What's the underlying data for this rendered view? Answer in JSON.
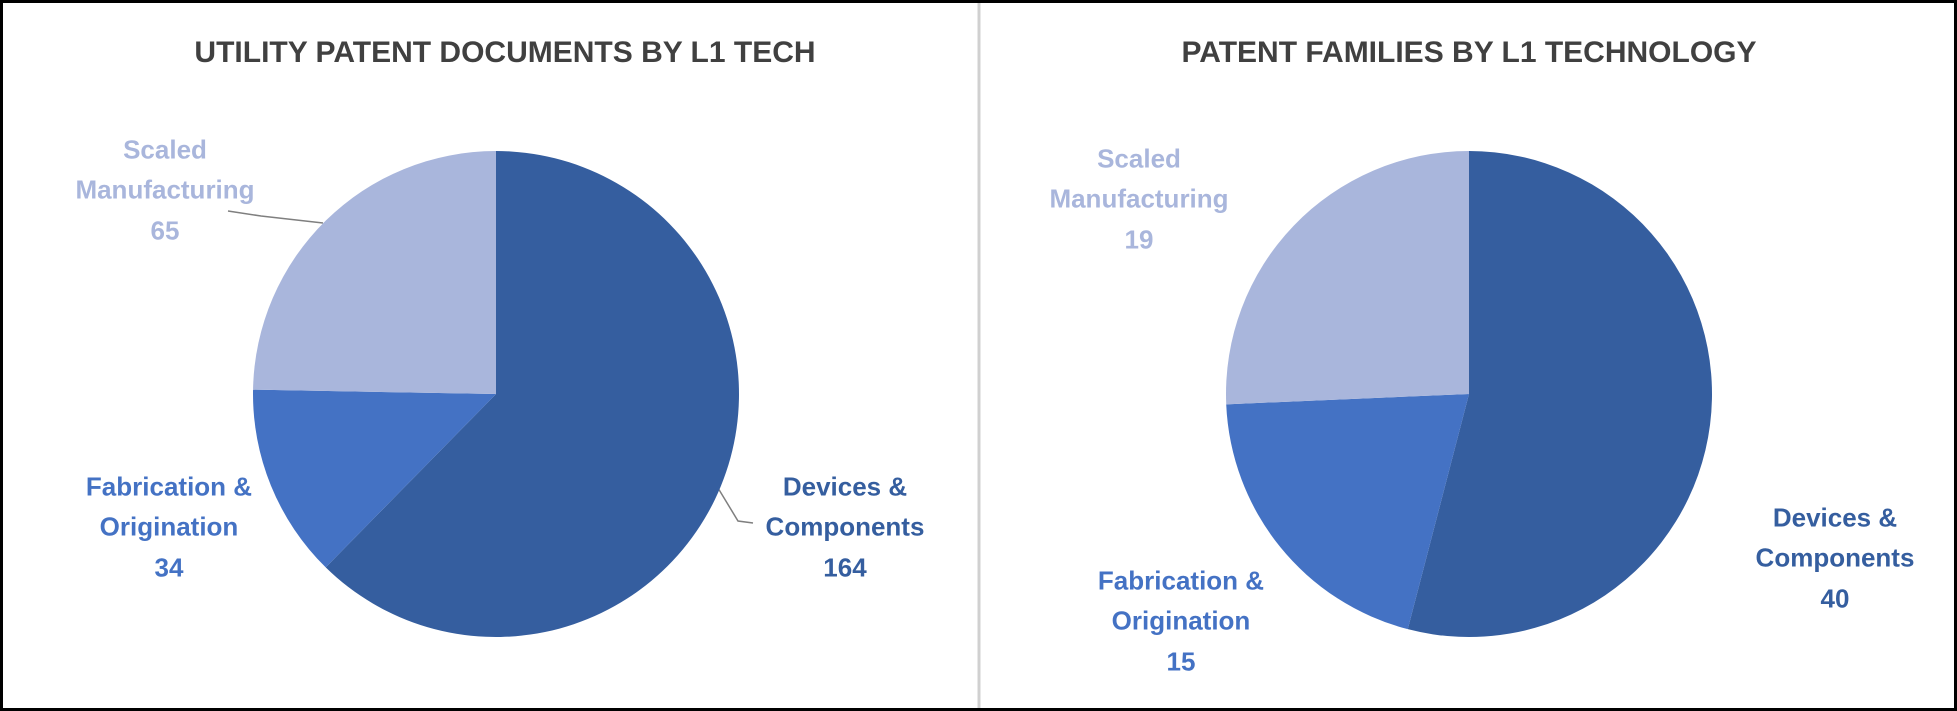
{
  "chart_data": [
    {
      "type": "pie",
      "title": "UTILITY PATENT DOCUMENTS BY L1 TECH",
      "categories": [
        "Devices & Components",
        "Fabrication & Origination",
        "Scaled Manufacturing"
      ],
      "values": [
        164,
        34,
        65
      ],
      "colors": [
        "#355e9f",
        "#4472c4",
        "#a9b6dc"
      ]
    },
    {
      "type": "pie",
      "title": "PATENT FAMILIES BY L1 TECHNOLOGY",
      "categories": [
        "Devices & Components",
        "Fabrication & Origination",
        "Scaled Manufacturing"
      ],
      "values": [
        40,
        15,
        19
      ],
      "colors": [
        "#355e9f",
        "#4472c4",
        "#a9b6dc"
      ]
    }
  ]
}
